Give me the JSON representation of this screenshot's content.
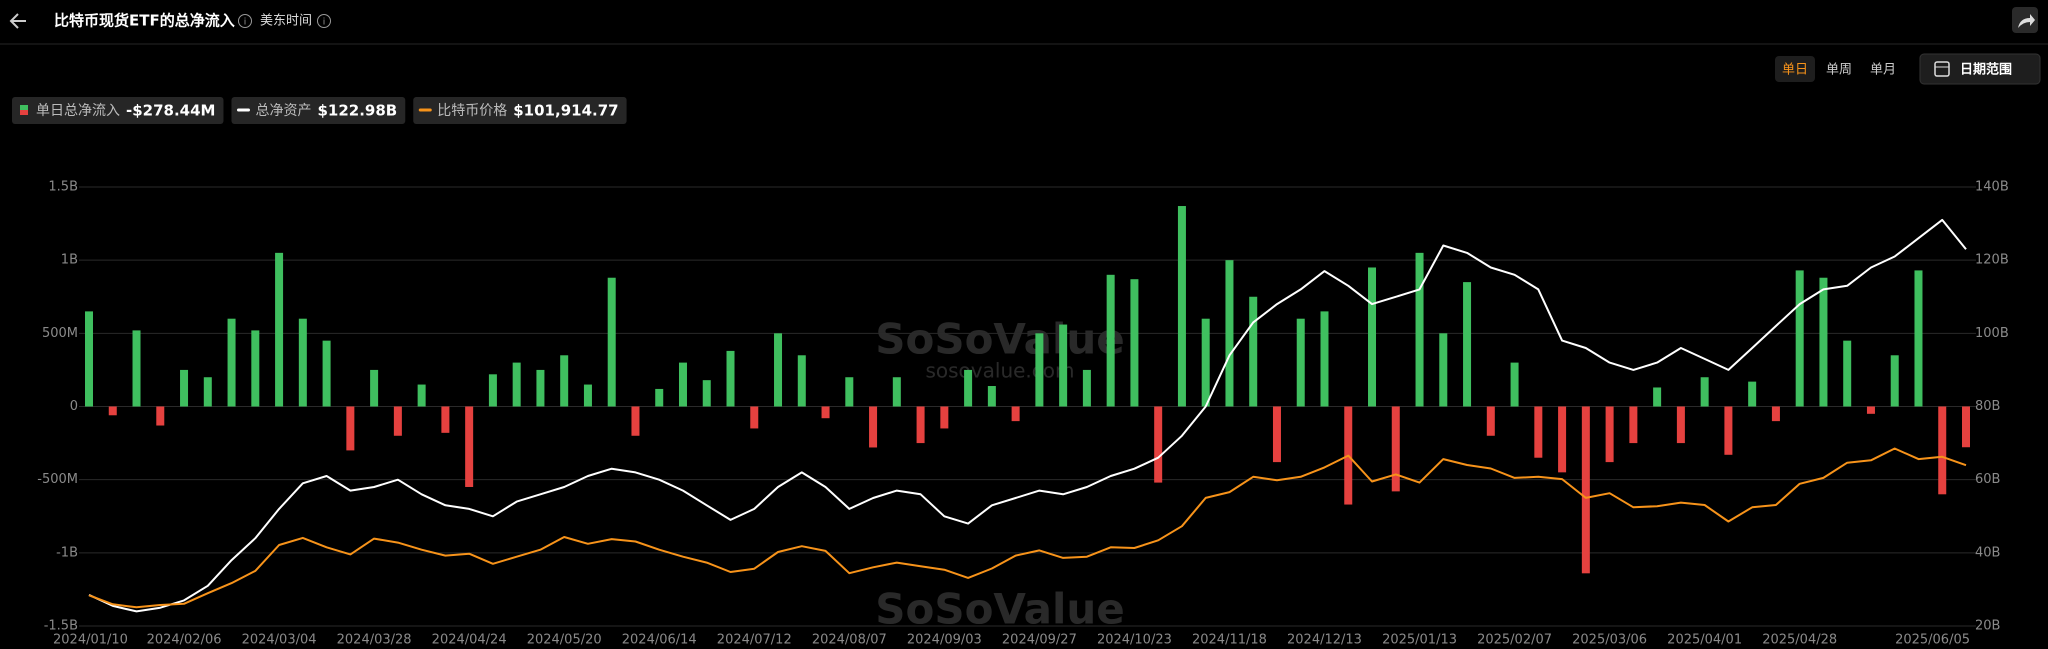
{
  "header": {
    "title": "比特币现货ETF的总净流入",
    "timezone": "美东时间"
  },
  "controls": {
    "periods": [
      "单日",
      "单周",
      "单月"
    ],
    "active": 0,
    "date_range": "日期范围"
  },
  "watermark": {
    "brand": "SoSoValue",
    "site": "sosovalue.com"
  },
  "chart_data": {
    "type": "bar-line",
    "categories": [
      "2024/01/10",
      null,
      null,
      null,
      "2024/02/06",
      null,
      null,
      null,
      "2024/03/04",
      null,
      null,
      null,
      "2024/03/28",
      null,
      null,
      null,
      "2024/04/24",
      null,
      null,
      null,
      "2024/05/20",
      null,
      null,
      null,
      "2024/06/14",
      null,
      null,
      null,
      "2024/07/12",
      null,
      null,
      null,
      "2024/08/07",
      null,
      null,
      null,
      "2024/09/03",
      null,
      null,
      null,
      "2024/09/27",
      null,
      null,
      null,
      "2024/10/23",
      null,
      null,
      null,
      "2024/11/18",
      null,
      null,
      null,
      "2024/12/13",
      null,
      null,
      null,
      "2025/01/13",
      null,
      null,
      null,
      "2025/02/07",
      null,
      null,
      null,
      "2025/03/06",
      null,
      null,
      null,
      "2025/04/01",
      null,
      null,
      null,
      "2025/04/28",
      null,
      null,
      null,
      null,
      null,
      null,
      "2025/06/05"
    ],
    "series": [
      {
        "name": "单日总净流入",
        "type": "bar",
        "color": "#3fbf5f",
        "negative_color": "#e5413f",
        "legend_value": "-$278.44M",
        "values": [
          0.65,
          -0.06,
          0.52,
          -0.13,
          0.25,
          0.2,
          0.6,
          0.52,
          1.05,
          0.6,
          0.45,
          -0.3,
          0.25,
          -0.2,
          0.15,
          -0.18,
          -0.55,
          0.22,
          0.3,
          0.25,
          0.35,
          0.15,
          0.88,
          -0.2,
          0.12,
          0.3,
          0.18,
          0.38,
          -0.15,
          0.5,
          0.35,
          -0.08,
          0.2,
          -0.28,
          0.2,
          -0.25,
          -0.15,
          0.25,
          0.14,
          -0.1,
          0.5,
          0.56,
          0.25,
          0.9,
          0.87,
          -0.52,
          1.37,
          0.6,
          1.0,
          0.75,
          -0.38,
          0.6,
          0.65,
          -0.67,
          0.95,
          -0.58,
          1.05,
          0.5,
          0.85,
          -0.2,
          0.3,
          -0.35,
          -0.45,
          -1.14,
          -0.38,
          -0.25,
          0.13,
          -0.25,
          0.2,
          -0.33,
          0.17,
          -0.1,
          0.93,
          0.88,
          0.45,
          -0.05,
          0.35,
          0.93,
          -0.6,
          -0.27844
        ]
      },
      {
        "name": "总净资产",
        "type": "line",
        "axis": "y2",
        "color": "#ffffff",
        "legend_value": "$122.98B",
        "values": [
          28.5,
          25.5,
          24,
          25,
          27,
          31,
          38,
          44,
          52,
          59,
          61,
          57,
          58,
          60,
          56,
          53,
          52,
          50,
          54,
          56,
          58,
          61,
          63,
          62,
          60,
          57,
          53,
          49,
          52,
          58,
          62,
          58,
          52,
          55,
          57,
          56,
          50,
          48,
          53,
          55,
          57,
          56,
          58,
          61,
          63,
          66,
          72,
          80,
          94,
          103,
          108,
          112,
          117,
          113,
          108,
          110,
          112,
          124,
          122,
          118,
          116,
          112,
          98,
          96,
          92,
          90,
          92,
          96,
          93,
          90,
          96,
          102,
          108,
          112,
          113,
          118,
          121,
          126,
          131,
          122.98
        ]
      },
      {
        "name": "比特币价格",
        "type": "line",
        "axis": "y3",
        "color": "#f7931a",
        "legend_value": "$101,914.77",
        "values": [
          46600,
          42800,
          41500,
          42500,
          43000,
          47500,
          51800,
          57000,
          68000,
          71000,
          67000,
          64000,
          70700,
          69000,
          66000,
          63500,
          64300,
          60000,
          63000,
          66000,
          71400,
          68500,
          70500,
          69500,
          66000,
          63000,
          60500,
          56500,
          57900,
          65000,
          67500,
          65500,
          56000,
          58500,
          60500,
          59000,
          57500,
          54000,
          58000,
          63500,
          65700,
          62500,
          63000,
          67000,
          66700,
          70000,
          76000,
          88000,
          90500,
          97000,
          95500,
          97000,
          101000,
          106000,
          95000,
          98000,
          94500,
          104500,
          102000,
          100500,
          96500,
          97000,
          96000,
          88000,
          90000,
          84000,
          84500,
          86000,
          85000,
          78000,
          84000,
          85000,
          94000,
          96500,
          103000,
          104000,
          109000,
          104500,
          105500,
          101914.77
        ]
      }
    ],
    "ylim": [
      -1.5,
      1.5
    ],
    "yticks": [
      {
        "value": 1.5,
        "label": "1.5B"
      },
      {
        "value": 1,
        "label": "1B"
      },
      {
        "value": 0.5,
        "label": "500M"
      },
      0,
      {
        "value": -0.5,
        "label": "-500M"
      },
      {
        "value": -1,
        "label": "-1B"
      },
      {
        "value": -1.5,
        "label": "-1.5B"
      }
    ],
    "y2lim": [
      20,
      140
    ],
    "y2ticks": [
      {
        "value": 140,
        "label": "140B"
      },
      {
        "value": 120,
        "label": "120B"
      },
      {
        "value": 100,
        "label": "100B"
      },
      {
        "value": 80,
        "label": "80B"
      },
      {
        "value": 60,
        "label": "60B"
      },
      {
        "value": 40,
        "label": "40B"
      },
      {
        "value": 20,
        "label": "20B"
      }
    ],
    "y3lim": [
      33560,
      220180
    ],
    "grid": true
  }
}
